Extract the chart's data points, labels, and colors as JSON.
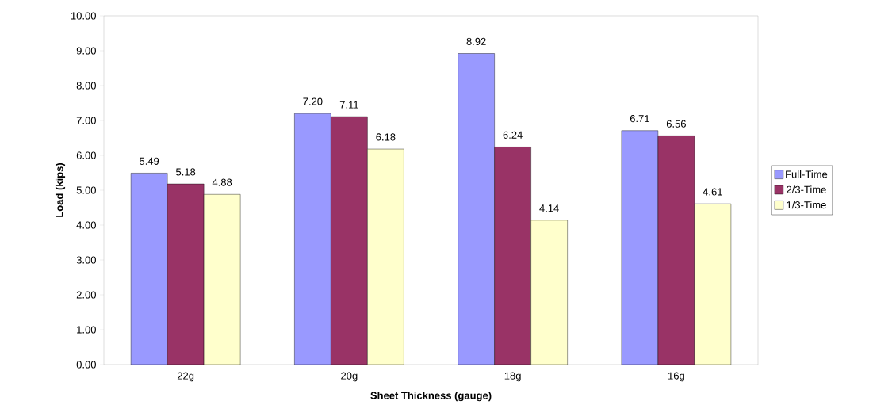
{
  "chart_data": {
    "type": "bar",
    "xlabel": "Sheet Thickness (gauge)",
    "ylabel": "Load (kips)",
    "categories": [
      "22g",
      "20g",
      "18g",
      "16g"
    ],
    "series": [
      {
        "name": "Full-Time",
        "color": "#9999ff",
        "values": [
          5.49,
          7.2,
          8.92,
          6.71
        ],
        "value_labels": [
          "5.49",
          "7.20",
          "8.92",
          "6.71"
        ]
      },
      {
        "name": "2/3-Time",
        "color": "#993366",
        "values": [
          5.18,
          7.11,
          6.24,
          6.56
        ],
        "value_labels": [
          "5.18",
          "7.11",
          "6.24",
          "6.56"
        ]
      },
      {
        "name": "1/3-Time",
        "color": "#ffffcc",
        "values": [
          4.88,
          6.18,
          4.14,
          4.61
        ],
        "value_labels": [
          "4.88",
          "6.18",
          "4.14",
          "4.61"
        ]
      }
    ],
    "ylim": [
      0,
      10
    ],
    "yticks": [
      {
        "value": 0,
        "label": "0.00"
      },
      {
        "value": 1,
        "label": "1.00"
      },
      {
        "value": 2,
        "label": "2.00"
      },
      {
        "value": 3,
        "label": "3.00"
      },
      {
        "value": 4,
        "label": "4.00"
      },
      {
        "value": 5,
        "label": "5.00"
      },
      {
        "value": 6,
        "label": "6.00"
      },
      {
        "value": 7,
        "label": "7.00"
      },
      {
        "value": 8,
        "label": "8.00"
      },
      {
        "value": 9,
        "label": "9.00"
      },
      {
        "value": 10,
        "label": "10.00"
      }
    ],
    "legend": "right",
    "grid": false
  }
}
